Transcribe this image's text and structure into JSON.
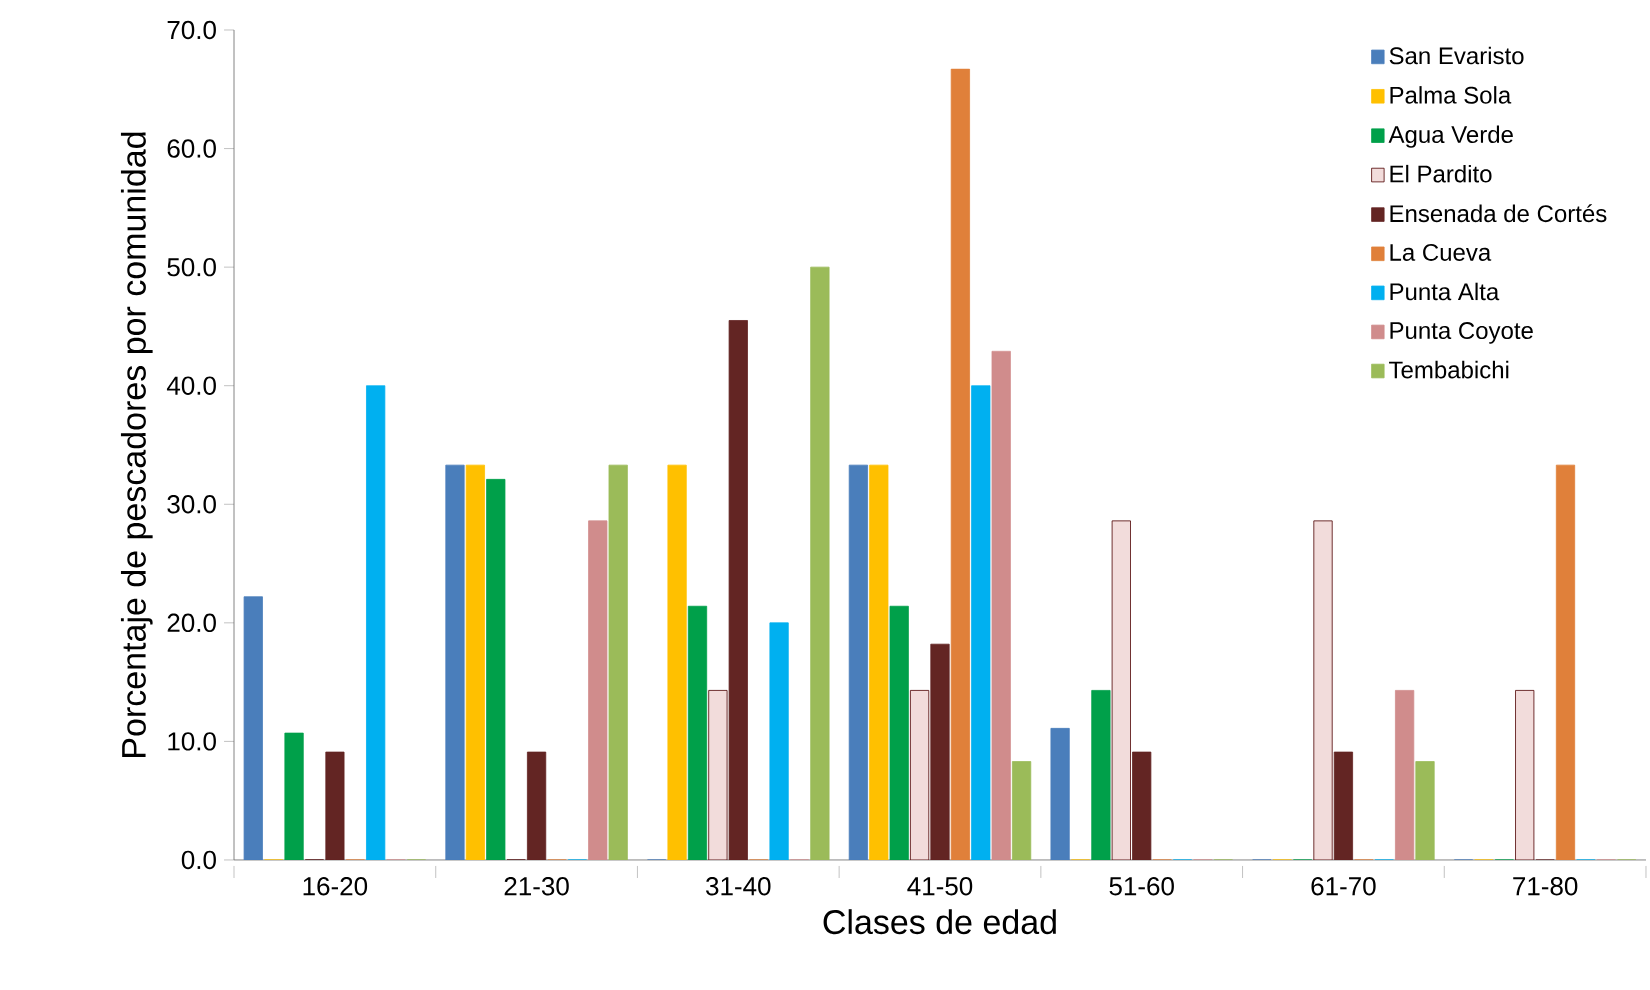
{
  "chart_data": {
    "type": "bar",
    "xlabel": "Clases de edad",
    "ylabel": "Porcentaje de pescadores por comunidad",
    "categories": [
      "16-20",
      "21-30",
      "31-40",
      "41-50",
      "51-60",
      "61-70",
      "71-80"
    ],
    "series": [
      {
        "name": "San Evaristo",
        "color": "#4a7ebb",
        "values": [
          22.2,
          33.3,
          0,
          33.3,
          11.1,
          0,
          0
        ]
      },
      {
        "name": "Palma Sola",
        "color": "#ffc000",
        "values": [
          0,
          33.3,
          33.3,
          33.3,
          0,
          0,
          0
        ]
      },
      {
        "name": "Agua Verde",
        "color": "#00a04a",
        "values": [
          10.7,
          32.1,
          21.4,
          21.4,
          14.3,
          0,
          0
        ]
      },
      {
        "name": "El Pardito",
        "color": "#f2dcdb",
        "values": [
          0,
          0,
          14.3,
          14.3,
          28.6,
          28.6,
          14.3
        ]
      },
      {
        "name": "Ensenada de Cortés",
        "color": "#632523",
        "values": [
          9.1,
          9.1,
          45.5,
          18.2,
          9.1,
          9.1,
          0
        ]
      },
      {
        "name": "La Cueva",
        "color": "#e0803a",
        "values": [
          0,
          0,
          0,
          66.7,
          0,
          0,
          33.3
        ]
      },
      {
        "name": "Punta Alta",
        "color": "#00b0f0",
        "values": [
          40,
          0,
          20,
          40,
          0,
          0,
          0
        ]
      },
      {
        "name": "Punta Coyote",
        "color": "#d08c8c",
        "values": [
          0,
          28.6,
          0,
          42.9,
          0,
          14.3,
          0
        ]
      },
      {
        "name": "Tembabichi",
        "color": "#9bbb59",
        "values": [
          0,
          33.3,
          50,
          8.3,
          0,
          8.3,
          0
        ]
      }
    ],
    "ylim": [
      0,
      70
    ],
    "yticks": [
      {
        "value": 0,
        "label": "0.0"
      },
      {
        "value": 10,
        "label": "10.0"
      },
      {
        "value": 20,
        "label": "20.0"
      },
      {
        "value": 30,
        "label": "30.0"
      },
      {
        "value": 40,
        "label": "40.0"
      },
      {
        "value": 50,
        "label": "50.0"
      },
      {
        "value": 60,
        "label": "60.0"
      },
      {
        "value": 70,
        "label": "70.0"
      }
    ],
    "legend": "top right",
    "grid": false
  }
}
